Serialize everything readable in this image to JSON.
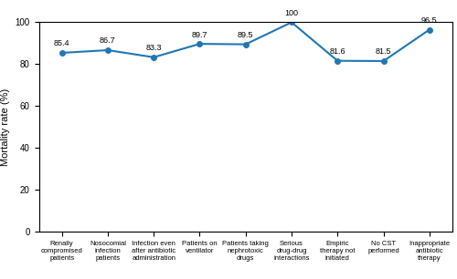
{
  "chart_data": {
    "type": "line",
    "categories": [
      "Renally\ncompromised\npatients",
      "Nosocomial\ninfection\npatients",
      "Infection even\nafter antibiotic\nadministration",
      "Patients on\nventilator",
      "Patients taking\nnephrotoxic\ndrugs",
      "Serious\ndrug-drug\ninteractions",
      "Empiric\ntherapy not\ninitiated",
      "No CST\nperformed",
      "Inappropriate\nantibiotic\ntherapy"
    ],
    "values": [
      85.4,
      86.7,
      83.3,
      89.7,
      89.5,
      100,
      81.6,
      81.5,
      96.5
    ],
    "ylabel": "Mortality rate (%)",
    "ylim": [
      0,
      100
    ],
    "yticks": [
      0,
      20,
      40,
      60,
      80,
      100
    ],
    "data_labels": true,
    "grid": false
  }
}
